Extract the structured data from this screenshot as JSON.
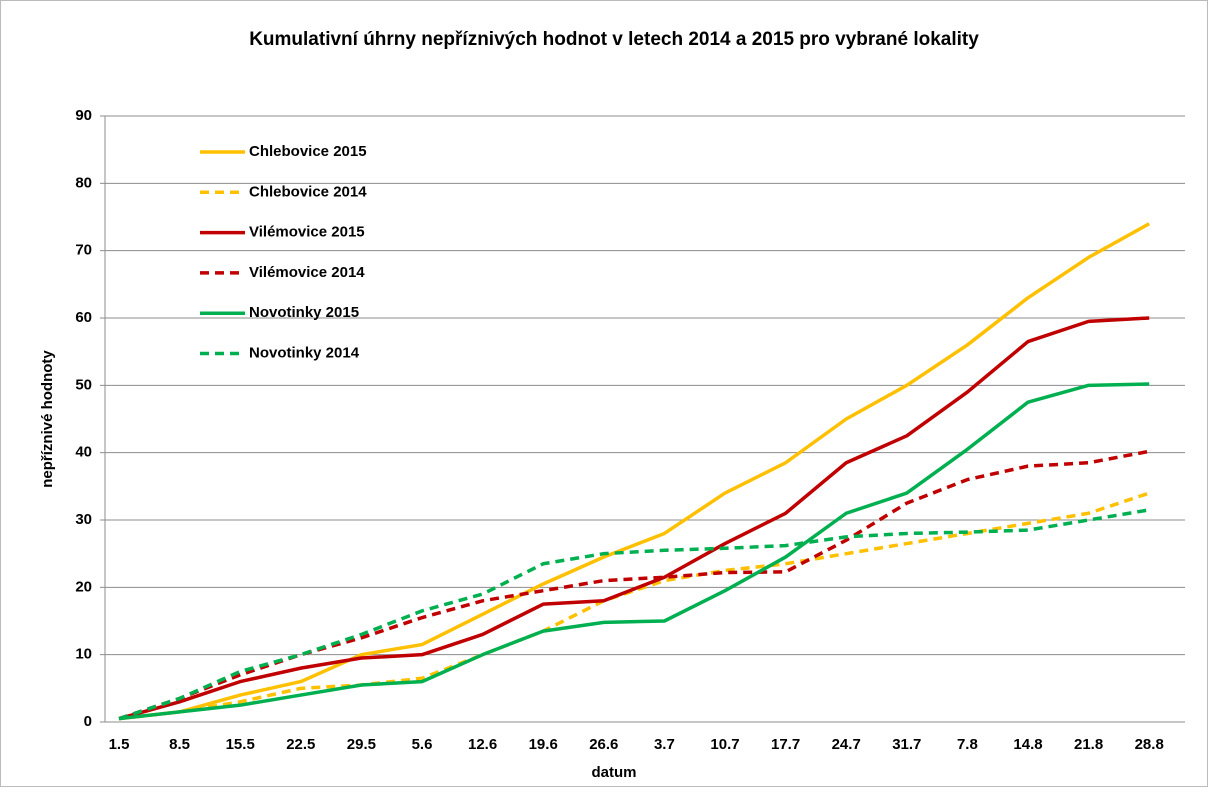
{
  "chart_data": {
    "type": "line",
    "title": "Kumulativní úhrny nepříznivých hodnot v letech 2014 a 2015 pro vybrané lokality",
    "x_label": "datum",
    "y_label": "nepříznivé hodnoty",
    "categories": [
      "1.5",
      "8.5",
      "15.5",
      "22.5",
      "29.5",
      "5.6",
      "12.6",
      "19.6",
      "26.6",
      "3.7",
      "10.7",
      "17.7",
      "24.7",
      "31.7",
      "7.8",
      "14.8",
      "21.8",
      "28.8"
    ],
    "ylim": [
      0,
      90
    ],
    "yticks": [
      0,
      10,
      20,
      30,
      40,
      50,
      60,
      70,
      80,
      90
    ],
    "grid": true,
    "legend": "upper-left",
    "series": [
      {
        "name": "Chlebovice 2015",
        "color": "#ffc000",
        "dashed": false,
        "values": [
          0.5,
          1.5,
          4,
          6,
          10,
          11.5,
          16,
          20.5,
          24.5,
          28,
          34,
          38.5,
          45,
          50,
          56,
          63,
          69,
          74
        ]
      },
      {
        "name": "Chlebovice 2014",
        "color": "#ffc000",
        "dashed": true,
        "values": [
          0.5,
          1.5,
          3,
          5,
          5.5,
          6.5,
          10,
          13.5,
          18,
          21,
          22.5,
          23.5,
          25,
          26.5,
          28,
          29.5,
          31,
          34
        ]
      },
      {
        "name": "Vilémovice 2015",
        "color": "#c00000",
        "dashed": false,
        "values": [
          0.5,
          3,
          6,
          8,
          9.5,
          10,
          13,
          17.5,
          18,
          21.5,
          26.5,
          31,
          38.5,
          42.5,
          49,
          56.5,
          59.5,
          60
        ]
      },
      {
        "name": "Vilémovice 2014",
        "color": "#c00000",
        "dashed": true,
        "values": [
          0.5,
          3.5,
          7,
          10,
          12.5,
          15.5,
          18,
          19.5,
          21,
          21.5,
          22.2,
          22.3,
          27,
          32.5,
          36,
          38,
          38.5,
          40.2
        ]
      },
      {
        "name": "Novotinky 2015",
        "color": "#00b050",
        "dashed": false,
        "values": [
          0.5,
          1.5,
          2.5,
          4,
          5.5,
          6,
          10,
          13.5,
          14.8,
          15,
          19.5,
          24.5,
          31,
          34,
          40.5,
          47.5,
          50,
          50.2
        ]
      },
      {
        "name": "Novotinky 2014",
        "color": "#00b050",
        "dashed": true,
        "values": [
          0.5,
          3.5,
          7.5,
          10,
          13,
          16.5,
          19,
          23.5,
          25,
          25.5,
          25.8,
          26.2,
          27.5,
          28,
          28.2,
          28.5,
          30,
          31.5
        ]
      }
    ]
  }
}
